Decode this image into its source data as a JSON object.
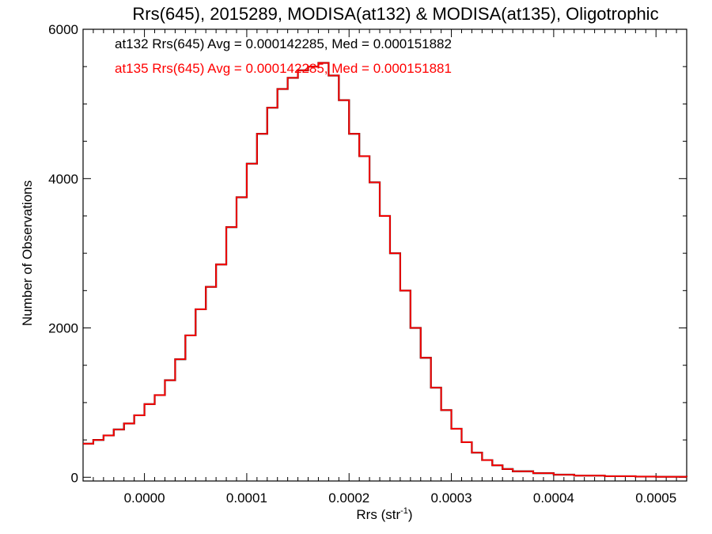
{
  "chart_data": {
    "type": "line",
    "title": "Rrs(645), 2015289, MODISA(at132) & MODISA(at135), Oligotrophic",
    "xlabel_base": "Rrs (str",
    "xlabel_exp": "-1",
    "xlabel_close": ")",
    "ylabel": "Number of Observations",
    "xlim": [
      -6e-05,
      0.00053
    ],
    "ylim": [
      -50,
      6000
    ],
    "x_ticks": [
      0.0,
      0.0001,
      0.0002,
      0.0003,
      0.0004,
      0.0005
    ],
    "x_tick_labels": [
      "0.0000",
      "0.0001",
      "0.0002",
      "0.0003",
      "0.0004",
      "0.0005"
    ],
    "y_ticks": [
      0,
      2000,
      4000,
      6000
    ],
    "y_tick_labels": [
      "0",
      "2000",
      "4000",
      "6000"
    ],
    "grid": false,
    "legend": [
      {
        "text": "at132 Rrs(645) Avg = 0.000142285, Med = 0.000151882",
        "color": "#000000"
      },
      {
        "text": "at135 Rrs(645) Avg = 0.000142285, Med = 0.000151881",
        "color": "#ff0000"
      }
    ],
    "x": [
      -6e-05,
      -5e-05,
      -4e-05,
      -3e-05,
      -2e-05,
      -1e-05,
      0.0,
      1e-05,
      2e-05,
      3e-05,
      4e-05,
      5e-05,
      6e-05,
      7e-05,
      8e-05,
      9e-05,
      0.0001,
      0.00011,
      0.00012,
      0.00013,
      0.00014,
      0.00015,
      0.00016,
      0.00017,
      0.00018,
      0.00019,
      0.0002,
      0.00021,
      0.00022,
      0.00023,
      0.00024,
      0.00025,
      0.00026,
      0.00027,
      0.00028,
      0.00029,
      0.0003,
      0.00031,
      0.00032,
      0.00033,
      0.00034,
      0.00035,
      0.00036,
      0.00038,
      0.0004,
      0.00042,
      0.00045,
      0.00048,
      0.0005,
      0.00053
    ],
    "series": [
      {
        "color": "#000000",
        "values": [
          450,
          500,
          560,
          640,
          720,
          830,
          980,
          1100,
          1300,
          1580,
          1900,
          2250,
          2550,
          2850,
          3350,
          3750,
          4200,
          4600,
          4950,
          5200,
          5350,
          5450,
          5500,
          5550,
          5380,
          5050,
          4600,
          4300,
          3950,
          3500,
          3000,
          2500,
          2000,
          1600,
          1200,
          900,
          650,
          470,
          330,
          230,
          160,
          110,
          80,
          55,
          35,
          22,
          14,
          9,
          6,
          4
        ]
      },
      {
        "color": "#ff0000",
        "values": [
          450,
          500,
          560,
          640,
          720,
          830,
          980,
          1100,
          1300,
          1580,
          1900,
          2250,
          2550,
          2850,
          3350,
          3750,
          4200,
          4600,
          4950,
          5200,
          5350,
          5450,
          5500,
          5550,
          5380,
          5050,
          4600,
          4300,
          3950,
          3500,
          3000,
          2500,
          2000,
          1600,
          1200,
          900,
          650,
          470,
          330,
          230,
          160,
          110,
          80,
          55,
          35,
          22,
          14,
          9,
          6,
          4
        ]
      }
    ]
  }
}
